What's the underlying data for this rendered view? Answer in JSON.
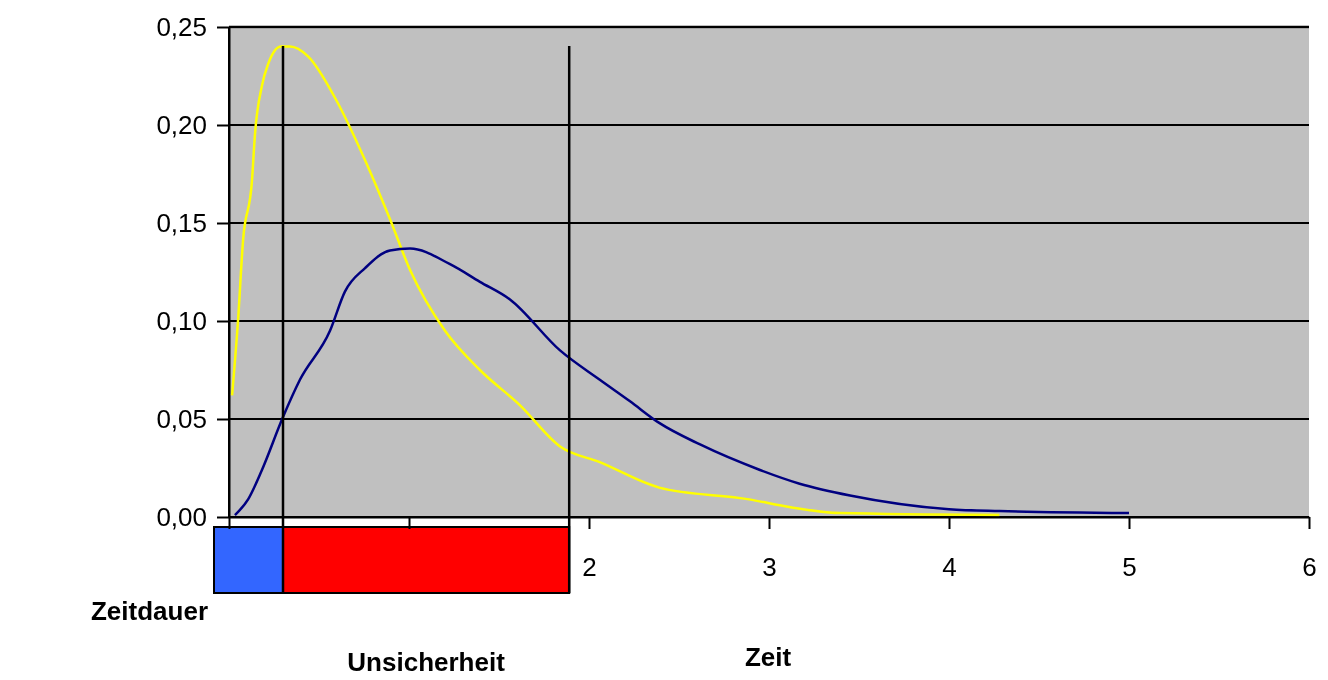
{
  "chart_data": {
    "type": "line",
    "xlabel": "Zeit",
    "xlim": [
      0,
      6
    ],
    "xticks": [
      {
        "value": 0,
        "label": null
      },
      {
        "value": 1,
        "label": null
      },
      2,
      3,
      4,
      5,
      6
    ],
    "ylim": [
      0,
      0.25
    ],
    "yticks": [
      {
        "value": 0,
        "label": "0,00"
      },
      {
        "value": 0.05,
        "label": "0,05"
      },
      {
        "value": 0.1,
        "label": "0,10"
      },
      {
        "value": 0.15,
        "label": "0,15"
      },
      {
        "value": 0.2,
        "label": "0,20"
      },
      {
        "value": 0.25,
        "label": "0,25"
      }
    ],
    "grid": "y",
    "series": [
      {
        "color": "#ffff00",
        "x": [
          0.017,
          0.05,
          0.078,
          0.128,
          0.144,
          0.183,
          0.217,
          0.289,
          0.339,
          0.439,
          0.594,
          0.756,
          0.894,
          1.006,
          1.2,
          1.394,
          1.617,
          1.839,
          2.06,
          2.39,
          2.89,
          3.12,
          3.39,
          4.28
        ],
        "values": [
          0.062,
          0.1,
          0.141,
          0.172,
          0.195,
          0.22,
          0.231,
          0.24,
          0.24,
          0.235,
          0.213,
          0.182,
          0.152,
          0.126,
          0.095,
          0.075,
          0.057,
          0.036,
          0.028,
          0.015,
          0.009,
          0.005,
          0.002,
          0.001
        ]
      },
      {
        "color": "#000080",
        "x": [
          0.033,
          0.106,
          0.183,
          0.3,
          0.394,
          0.561,
          0.644,
          0.756,
          0.894,
          1.006,
          1.228,
          1.394,
          1.561,
          1.839,
          2.06,
          2.228,
          2.39,
          2.617,
          2.95,
          3.17,
          3.45,
          4.0,
          4.28,
          5.0
        ],
        "values": [
          0.001,
          0.009,
          0.024,
          0.051,
          0.07,
          0.095,
          0.115,
          0.127,
          0.136,
          0.137,
          0.129,
          0.12,
          0.111,
          0.085,
          0.07,
          0.059,
          0.048,
          0.037,
          0.024,
          0.017,
          0.011,
          0.004,
          0.003,
          0.002
        ]
      }
    ],
    "ref_lines": [
      {
        "axis": "x",
        "value": 0.3
      },
      {
        "axis": "x",
        "value": 1.89
      }
    ],
    "annotations": [
      "Zeitdauer",
      "Unsicherheit"
    ]
  }
}
